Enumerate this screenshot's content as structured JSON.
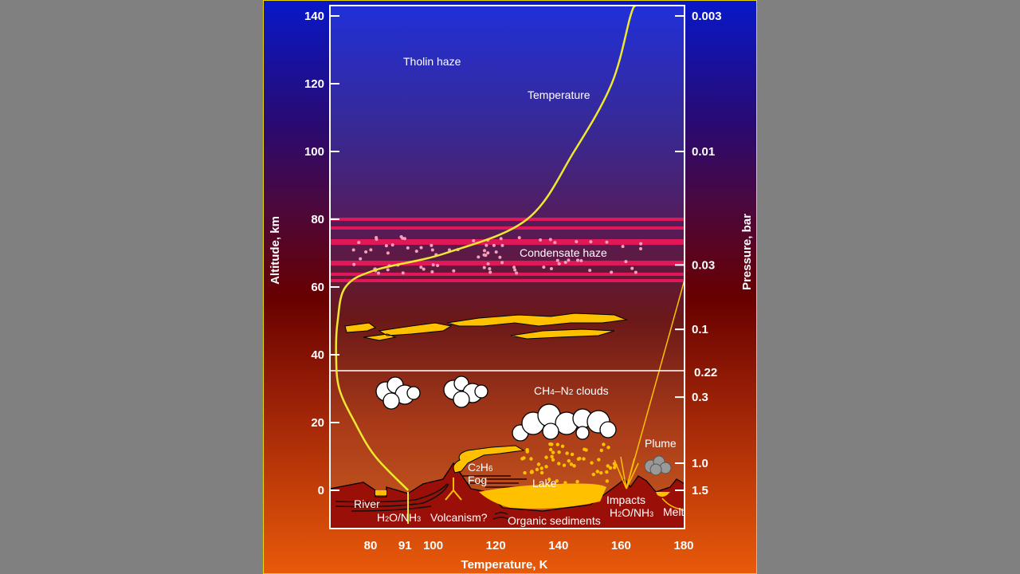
{
  "chart_data": {
    "type": "line",
    "xlabel": "Temperature, K",
    "ylabel": "Altitude, km",
    "y2label": "Pressure, bar",
    "xlim": [
      67,
      180
    ],
    "ylim": [
      -11,
      143
    ],
    "x_ticks": [
      "80",
      "91",
      "100",
      "120",
      "140",
      "160",
      "180"
    ],
    "x_tick_values": [
      80,
      91,
      100,
      120,
      140,
      160,
      180
    ],
    "y_ticks": [
      "0",
      "20",
      "40",
      "60",
      "80",
      "100",
      "120",
      "140"
    ],
    "y_tick_values": [
      0,
      20,
      40,
      60,
      80,
      100,
      120,
      140
    ],
    "pressure_ticks": [
      {
        "label": "0.003",
        "altitude": 140
      },
      {
        "label": "0.01",
        "altitude": 100
      },
      {
        "label": "0.03",
        "altitude": 66.5
      },
      {
        "label": "0.1",
        "altitude": 47.5
      },
      {
        "label": "0.22",
        "altitude": 35
      },
      {
        "label": "0.3",
        "altitude": 27.5
      },
      {
        "label": "1.0",
        "altitude": 8
      },
      {
        "label": "1.5",
        "altitude": 0
      }
    ],
    "series": [
      {
        "name": "Temperature",
        "color": "#f0e830",
        "points": [
          [
            92,
            0
          ],
          [
            81.5,
            10
          ],
          [
            75,
            20
          ],
          [
            70,
            30
          ],
          [
            69,
            40
          ],
          [
            69.5,
            50
          ],
          [
            72,
            60
          ],
          [
            81.5,
            65
          ],
          [
            104,
            70
          ],
          [
            130,
            80
          ],
          [
            145,
            100
          ],
          [
            157,
            120
          ],
          [
            163,
            140
          ],
          [
            164.5,
            143
          ]
        ]
      }
    ],
    "tropopause_altitude": 35
  },
  "annotations": {
    "tholin_haze": "Tholin haze",
    "temperature": "Temperature",
    "condensate_haze": "Condensate haze",
    "clouds_pre": "CH",
    "clouds_sub1": "4",
    "clouds_mid": "–N",
    "clouds_sub2": "2",
    "clouds_post": " clouds",
    "plume": "Plume",
    "fog_c": "C",
    "fog_2": "2",
    "fog_h": "H",
    "fog_6": "6",
    "fog": "Fog",
    "lake": "Lake",
    "river": "River",
    "h2o_a": "H",
    "h2o_b": "2",
    "h2o_c": "O/NH",
    "h2o_d": "3",
    "volcanism": "Volcanism?",
    "organic_sediments": "Organic sediments",
    "impacts": "Impacts",
    "melt": "Melt"
  },
  "colors": {
    "sky_top": "#0818c8",
    "sky_mid": "#5a0010",
    "sky_bottom": "#e85a0a",
    "haze_band": "#e0185a",
    "methane_yellow": "#ffc000",
    "ground": "#9a1008",
    "temperature_line": "#f0e830"
  }
}
